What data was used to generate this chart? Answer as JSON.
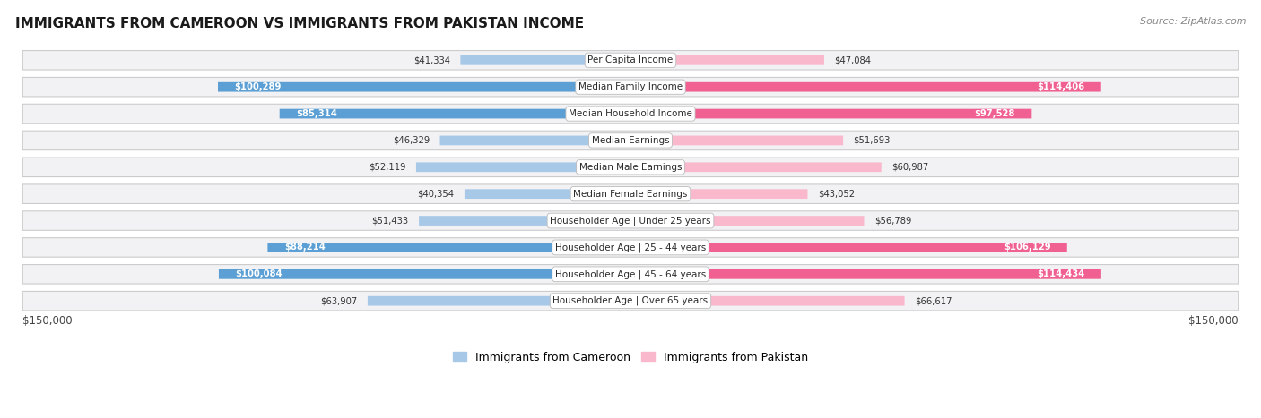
{
  "title": "IMMIGRANTS FROM CAMEROON VS IMMIGRANTS FROM PAKISTAN INCOME",
  "source": "Source: ZipAtlas.com",
  "categories": [
    "Per Capita Income",
    "Median Family Income",
    "Median Household Income",
    "Median Earnings",
    "Median Male Earnings",
    "Median Female Earnings",
    "Householder Age | Under 25 years",
    "Householder Age | 25 - 44 years",
    "Householder Age | 45 - 64 years",
    "Householder Age | Over 65 years"
  ],
  "cameroon_values": [
    41334,
    100289,
    85314,
    46329,
    52119,
    40354,
    51433,
    88214,
    100084,
    63907
  ],
  "pakistan_values": [
    47084,
    114406,
    97528,
    51693,
    60987,
    43052,
    56789,
    106129,
    114434,
    66617
  ],
  "cameroon_labels": [
    "$41,334",
    "$100,289",
    "$85,314",
    "$46,329",
    "$52,119",
    "$40,354",
    "$51,433",
    "$88,214",
    "$100,084",
    "$63,907"
  ],
  "pakistan_labels": [
    "$47,084",
    "$114,406",
    "$97,528",
    "$51,693",
    "$60,987",
    "$43,052",
    "$56,789",
    "$106,129",
    "$114,434",
    "$66,617"
  ],
  "max_value": 150000,
  "cam_color_light": "#a8c8e8",
  "cam_color_dark": "#5b9fd4",
  "pak_color_light": "#f9b8cc",
  "pak_color_dark": "#f06090",
  "inside_label_threshold": 75000,
  "row_bg": "#f2f2f4",
  "row_border": "#d8d8dc",
  "legend_cameroon": "Immigrants from Cameroon",
  "legend_pakistan": "Immigrants from Pakistan"
}
